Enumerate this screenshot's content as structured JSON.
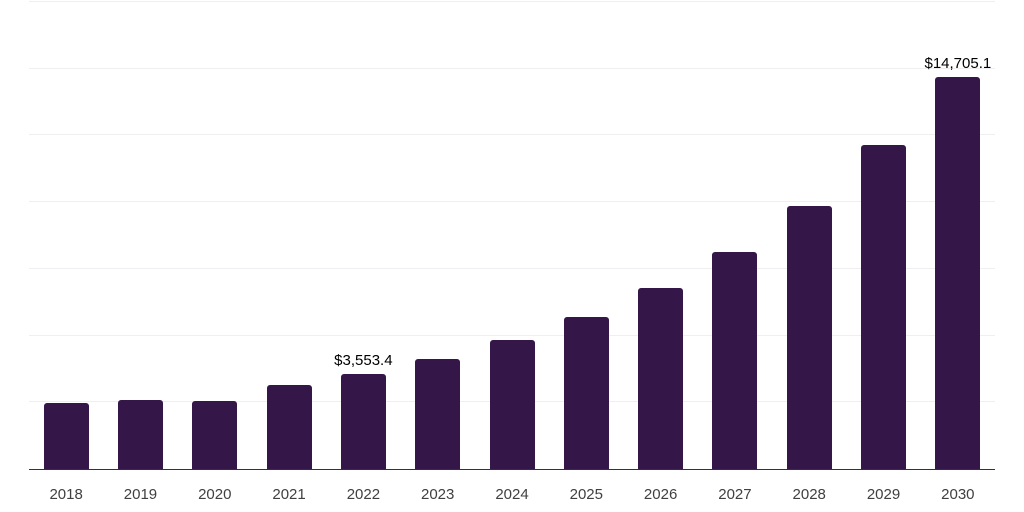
{
  "chart_data": {
    "type": "bar",
    "title": "",
    "xlabel": "",
    "ylabel": "",
    "categories": [
      "2018",
      "2019",
      "2020",
      "2021",
      "2022",
      "2023",
      "2024",
      "2025",
      "2026",
      "2027",
      "2028",
      "2029",
      "2030"
    ],
    "values": [
      2460,
      2600,
      2565,
      3130,
      3553.4,
      4120,
      4835,
      5700,
      6790,
      8140,
      9870,
      12130,
      14705.1
    ],
    "value_labels": [
      "",
      "",
      "",
      "",
      "$3,553.4",
      "",
      "",
      "",
      "",
      "",
      "",
      "",
      "$14,705.1"
    ],
    "ylim": [
      0,
      17500
    ],
    "gridline_step": 2500,
    "grid": "horizontal",
    "y_tick_labels": "none",
    "legend": "none",
    "colors": {
      "bar": "#341649",
      "gridline": "#efeff1",
      "axis_line": "#333333",
      "tick_label": "#404040",
      "data_label": "#000000",
      "background": "#ffffff"
    }
  }
}
